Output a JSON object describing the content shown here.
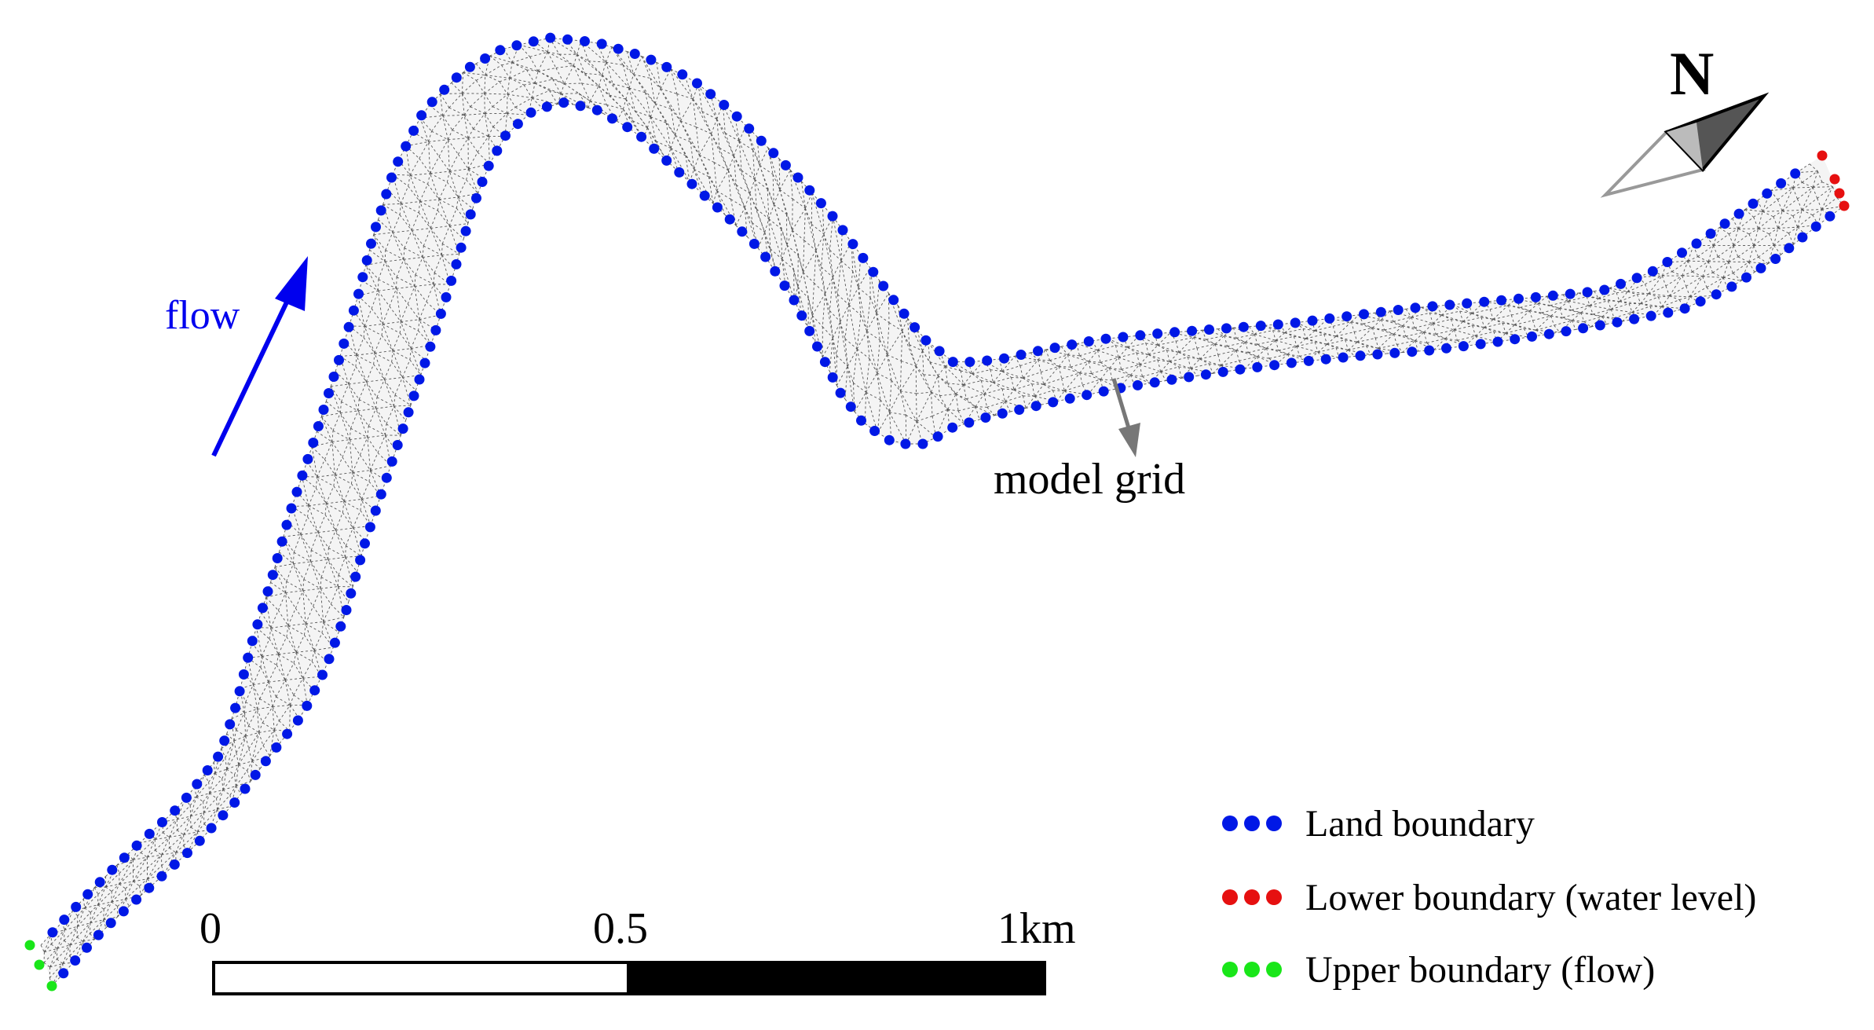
{
  "map": {
    "north_label": "N",
    "flow_label": "flow",
    "grid_label": "model grid",
    "scale_bar": {
      "labels": [
        "0",
        "0.5",
        "1km"
      ]
    },
    "legend": {
      "items": [
        {
          "label": "Land boundary",
          "color": "#0018e6"
        },
        {
          "label": "Lower boundary (water level)",
          "color": "#e61010"
        },
        {
          "label": "Upper boundary (flow)",
          "color": "#19e619"
        }
      ]
    },
    "colors": {
      "land": "#0018e6",
      "lower": "#e61010",
      "upper": "#19e619",
      "flow_arrow": "#0000ee",
      "grid": "#222222",
      "label_arrow": "#777777"
    },
    "icons": [
      "north-arrow-icon",
      "flow-arrow-icon"
    ]
  }
}
